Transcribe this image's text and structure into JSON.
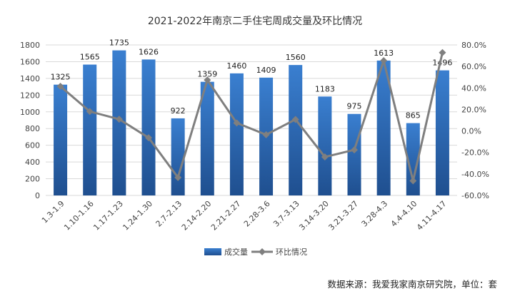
{
  "chart_data": {
    "type": "bar",
    "title": "2021-2022年南京二手住宅周成交量及环比情况",
    "categories": [
      "1.3-1.9",
      "1.10-1.16",
      "1.17-1.23",
      "1.24-1.30",
      "2.7-2.13",
      "2.14-2.20",
      "2.21-2.27",
      "2.28-3.6",
      "3.7-3.13",
      "3.14-3.20",
      "3.21-3.27",
      "3.28-4.3",
      "4.4-4.10",
      "4.11-4.17"
    ],
    "series": [
      {
        "name": "成交量",
        "type": "bar",
        "axis": "left",
        "values": [
          1325,
          1565,
          1735,
          1626,
          922,
          1359,
          1460,
          1409,
          1560,
          1183,
          975,
          1613,
          865,
          1496
        ],
        "labels": [
          "1325",
          "1565",
          "1735",
          "1626",
          "922",
          "1359",
          "1460",
          "1409",
          "1560",
          "1183",
          "975",
          "1613",
          "865",
          "1496"
        ]
      },
      {
        "name": "环比情况",
        "type": "line",
        "axis": "right",
        "values": [
          41.5,
          18.1,
          10.9,
          -6.3,
          -43.3,
          47.4,
          7.4,
          -3.5,
          10.7,
          -24.2,
          -17.6,
          65.4,
          -46.4,
          72.9
        ]
      }
    ],
    "y_left": {
      "min": 0,
      "max": 1800,
      "step": 200,
      "ticks": [
        "0",
        "200",
        "400",
        "600",
        "800",
        "1000",
        "1200",
        "1400",
        "1600",
        "1800"
      ]
    },
    "y_right": {
      "min": -60,
      "max": 80,
      "step": 20,
      "ticks": [
        "-60.0%",
        "-40.0%",
        "-20.0%",
        "0.0%",
        "20.0%",
        "40.0%",
        "60.0%",
        "80.0%"
      ]
    },
    "grid": true,
    "legend_position": "bottom",
    "colors": {
      "bar": "#2e6fb8",
      "bar_dark": "#1f4f8f",
      "line": "#7f7f7f",
      "grid": "#d9d9d9"
    }
  },
  "source_note": "数据来源：我爱我家南京研究院，单位：套"
}
